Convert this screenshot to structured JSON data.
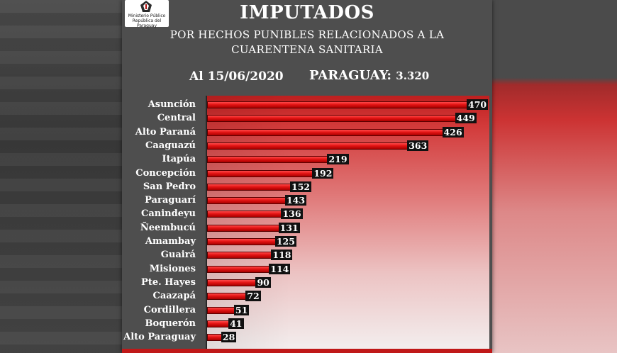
{
  "header": {
    "logo_text": "Ministerio Público República del Paraguay",
    "title": "IMPUTADOS",
    "subtitle_line1": "POR HECHOS PUNIBLES RELACIONADOS A LA",
    "subtitle_line2": "CUARENTENA SANITARIA",
    "date": "Al 15/06/2020",
    "total_label": "PARAGUAY:",
    "total_value": "3.320"
  },
  "colors": {
    "bar": "#e31414",
    "background": "#4e4e4e",
    "value_box": "#111111"
  },
  "chart_data": {
    "type": "bar",
    "orientation": "horizontal",
    "categories": [
      "Asunción",
      "Central",
      "Alto Paraná",
      "Caaguazú",
      "Itapúa",
      "Concepción",
      "San Pedro",
      "Paraguarí",
      "Canindeyu",
      "Ñeembucú",
      "Amambay",
      "Guairá",
      "Misiones",
      "Pte. Hayes",
      "Caazapá",
      "Cordillera",
      "Boquerón",
      "Alto Paraguay"
    ],
    "values": [
      470,
      449,
      426,
      363,
      219,
      192,
      152,
      143,
      136,
      131,
      125,
      118,
      114,
      90,
      72,
      51,
      41,
      28
    ],
    "title": "IMPUTADOS",
    "xlabel": "",
    "ylabel": "",
    "xlim": [
      0,
      470
    ],
    "grid": false,
    "legend": "none"
  }
}
